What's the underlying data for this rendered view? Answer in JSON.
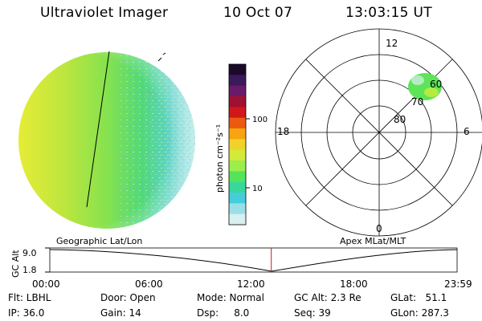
{
  "header": {
    "title": "Ultraviolet Imager",
    "date": "10 Oct 07",
    "time": "13:03:15 UT"
  },
  "colorbar": {
    "unit_label": "photon cm⁻²s⁻¹",
    "ticks": [
      "100",
      "10"
    ],
    "colors": [
      "#1a0a2a",
      "#3a1a5a",
      "#6a1a6a",
      "#a01030",
      "#d01818",
      "#ec5a10",
      "#f6a410",
      "#f2d22a",
      "#d2ea3a",
      "#9cee4a",
      "#54e45a",
      "#38d89a",
      "#44cedc",
      "#9adfe6",
      "#d8f0f0"
    ]
  },
  "polar_plot": {
    "clock_labels": [
      "12",
      "18",
      "6",
      "0"
    ],
    "lat_labels": [
      "60",
      "70",
      "80"
    ]
  },
  "timeline": {
    "left_title": "Geographic Lat/Lon",
    "right_title": "Apex  MLat/MLT",
    "axis_label": "GC Alt",
    "y_top": "9.0",
    "y_bottom": "1.8",
    "times": [
      "00:00",
      "06:00",
      "12:00",
      "18:00",
      "23:59"
    ],
    "current_time_fraction": 0.5438
  },
  "info": {
    "flt": "Flt: LBHL",
    "ip": "IP: 36.0",
    "door": "Door: Open",
    "gain": "Gain: 14",
    "mode": "Mode: Normal",
    "dsp": "Dsp:     8.0",
    "gc_alt": "GC Alt: 2.3 Re",
    "seq": "Seq: 39",
    "glat": "GLat:   51.1",
    "glon": "GLon: 287.3"
  },
  "accents": {
    "time_marker": "#c81818"
  }
}
